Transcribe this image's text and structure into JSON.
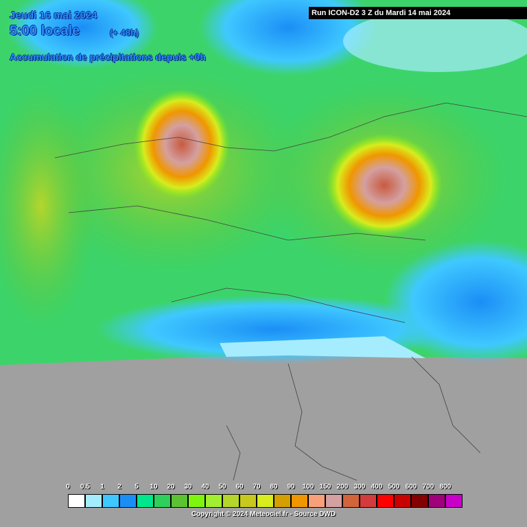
{
  "header": {
    "date": "Jeudi 16 mai 2024",
    "time": "5:00 locale",
    "lead": "(+ 48h)",
    "product": "Accumulation de précipitations depuis +0h",
    "run": "Run ICON-D2 3 Z du Mardi 14 mai 2024"
  },
  "legend": {
    "items": [
      {
        "label": "0",
        "color": "#ffffff"
      },
      {
        "label": "0.5",
        "color": "#a6ecff"
      },
      {
        "label": "1",
        "color": "#3fc8ff"
      },
      {
        "label": "2",
        "color": "#1b8ef6"
      },
      {
        "label": "5",
        "color": "#00e68c"
      },
      {
        "label": "10",
        "color": "#2ecf5a"
      },
      {
        "label": "20",
        "color": "#5cc232"
      },
      {
        "label": "30",
        "color": "#7ef50f"
      },
      {
        "label": "40",
        "color": "#a0f030"
      },
      {
        "label": "50",
        "color": "#b4d62c"
      },
      {
        "label": "60",
        "color": "#c8c81e"
      },
      {
        "label": "70",
        "color": "#d8ec1e"
      },
      {
        "label": "80",
        "color": "#d4a000"
      },
      {
        "label": "90",
        "color": "#f09600"
      },
      {
        "label": "100",
        "color": "#f8a07a"
      },
      {
        "label": "150",
        "color": "#d4a0a0"
      },
      {
        "label": "200",
        "color": "#d2643c"
      },
      {
        "label": "300",
        "color": "#d23c3c"
      },
      {
        "label": "400",
        "color": "#ff0000"
      },
      {
        "label": "500",
        "color": "#c80000"
      },
      {
        "label": "600",
        "color": "#820000"
      },
      {
        "label": "700",
        "color": "#a0007a"
      },
      {
        "label": "800",
        "color": "#c800c8"
      }
    ]
  },
  "footer": {
    "copyright": "Copyright © 2024 Meteociel.fr - Source DWD"
  }
}
